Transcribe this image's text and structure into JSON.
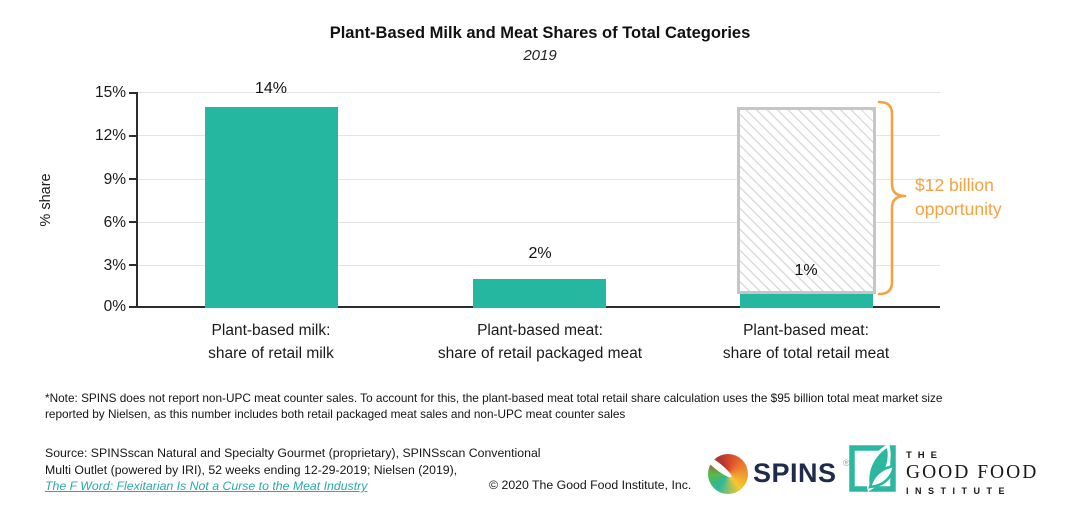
{
  "chart_data": {
    "type": "bar",
    "title": "Plant-Based Milk and Meat Shares of Total Categories",
    "subtitle": "2019",
    "ylabel": "% share",
    "ylim": [
      0,
      15
    ],
    "yticks_top_to_bottom": [
      "15%",
      "12%",
      "9%",
      "6%",
      "3%",
      "0%"
    ],
    "grid": true,
    "legend": "none",
    "categories": [
      {
        "line1": "Plant-based milk:",
        "line2": "share of retail milk"
      },
      {
        "line1": "Plant-based meat:",
        "line2": "share of retail packaged meat"
      },
      {
        "line1": "Plant-based meat:",
        "line2": "share of total retail meat"
      }
    ],
    "values": [
      14,
      2,
      1
    ],
    "bar_labels": [
      "14%",
      "2%",
      "1%"
    ],
    "bar_color": "#26B7A1",
    "opportunity": {
      "label_line1": "$12 billion",
      "label_line2": "opportunity",
      "applies_to_category": "Plant-based meat: share of total retail meat",
      "reaches_value": 14,
      "color": "#F5A243",
      "box_border_color": "#C6C6C6",
      "box_fill": "white with light gray diagonal hatch"
    }
  },
  "note": {
    "line1": "*Note: SPINS does not report non-UPC meat counter sales. To account for this, the plant-based meat total retail share calculation uses the $95 billion total meat market size",
    "line2": "reported by Nielsen, as this number includes both retail packaged meat sales and non-UPC meat counter sales"
  },
  "source": {
    "line1": "Source: SPINSscan Natural and Specialty Gourmet (proprietary), SPINSscan Conventional",
    "line2": "Multi Outlet (powered by IRI), 52 weeks ending 12-29-2019; Nielsen (2019),",
    "link": "The F Word: Flexitarian Is Not a Curse to the Meat Industry",
    "link_color": "#2BAAA5"
  },
  "copyright": "© 2020 The Good Food Institute, Inc.",
  "logos": {
    "spins": {
      "name": "SPINS",
      "registered": "®"
    },
    "gfi": {
      "the": "THE",
      "good_food": "GOOD FOOD",
      "institute": "INSTITUTE"
    }
  }
}
